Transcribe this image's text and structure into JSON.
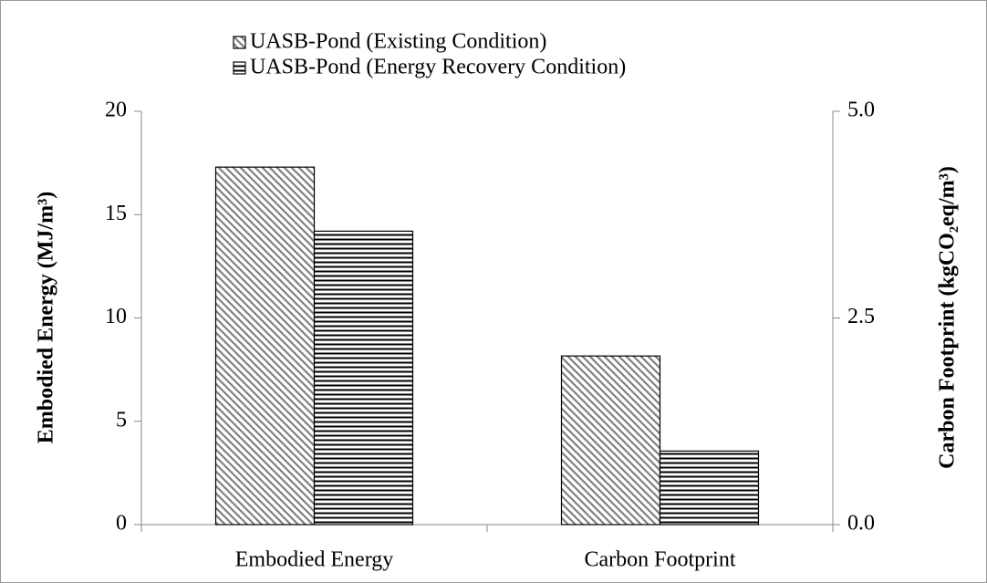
{
  "chart_data": {
    "type": "bar",
    "categories": [
      "Embodied Energy",
      "Carbon Footprint"
    ],
    "category_axes": [
      "y",
      "y2"
    ],
    "series": [
      {
        "name": "UASB-Pond (Existing Condition)",
        "color": "#808080",
        "pattern": "diagonal",
        "values": [
          17.3,
          2.04
        ]
      },
      {
        "name": "UASB-Pond (Energy Recovery Condition)",
        "color": "#000000",
        "pattern": "horizontal",
        "values": [
          14.2,
          0.89
        ]
      }
    ],
    "y_label": "Embodied Energy (MJ/m³)",
    "y2_label": "Carbon Footprint (kgCO₂eq/m³)",
    "ylim": [
      0,
      20
    ],
    "yticks": [
      0,
      5,
      10,
      15,
      20
    ],
    "y2lim": [
      0,
      5
    ],
    "y2ticks": [
      {
        "value": 0,
        "label": "0.0"
      },
      {
        "value": 2.5,
        "label": "2.5"
      },
      {
        "value": 5,
        "label": "5.0"
      }
    ],
    "legend": "top-left",
    "grid": false
  }
}
